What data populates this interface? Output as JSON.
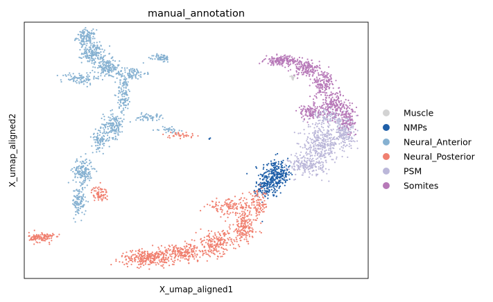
{
  "chart_data": {
    "type": "scatter",
    "title": "manual_annotation",
    "xlabel": "X_umap_aligned1",
    "ylabel": "X_umap_aligned2",
    "grid": false,
    "ticks": false,
    "legend_position": "right",
    "xlim": [
      0,
      100
    ],
    "ylim": [
      0,
      100
    ],
    "series": [
      {
        "name": "Muscle",
        "color": "#d3d3d3",
        "clusters": [
          {
            "x": 78,
            "y": 78.5,
            "sx": 0.5,
            "sy": 0.6,
            "n": 18
          }
        ]
      },
      {
        "name": "NMPs",
        "color": "#1f5fa8",
        "clusters": [
          {
            "x": 72,
            "y": 39,
            "sx": 1.8,
            "sy": 4.0,
            "n": 220
          },
          {
            "x": 75,
            "y": 41,
            "sx": 1.2,
            "sy": 2.5,
            "n": 90
          },
          {
            "x": 69,
            "y": 35,
            "sx": 1.0,
            "sy": 1.5,
            "n": 50
          },
          {
            "x": 54,
            "y": 54.5,
            "sx": 0.3,
            "sy": 0.3,
            "n": 4
          }
        ]
      },
      {
        "name": "Neural_Anterior",
        "color": "#86b1d1",
        "clusters": [
          {
            "x": 18,
            "y": 94,
            "sx": 1.4,
            "sy": 1.5,
            "n": 120
          },
          {
            "x": 20,
            "y": 88,
            "sx": 1.6,
            "sy": 2.0,
            "n": 160
          },
          {
            "x": 24,
            "y": 82,
            "sx": 1.8,
            "sy": 1.8,
            "n": 140
          },
          {
            "x": 16,
            "y": 78,
            "sx": 2.5,
            "sy": 1.2,
            "n": 80
          },
          {
            "x": 31,
            "y": 80,
            "sx": 2.2,
            "sy": 1.2,
            "n": 90
          },
          {
            "x": 40,
            "y": 86,
            "sx": 1.2,
            "sy": 0.8,
            "n": 60
          },
          {
            "x": 29,
            "y": 72,
            "sx": 1.0,
            "sy": 3.5,
            "n": 110
          },
          {
            "x": 26,
            "y": 60,
            "sx": 1.5,
            "sy": 2.5,
            "n": 150
          },
          {
            "x": 22,
            "y": 54,
            "sx": 1.2,
            "sy": 2.0,
            "n": 90
          },
          {
            "x": 17,
            "y": 42,
            "sx": 1.4,
            "sy": 2.5,
            "n": 160
          },
          {
            "x": 16,
            "y": 30,
            "sx": 1.0,
            "sy": 3.0,
            "n": 110
          },
          {
            "x": 36,
            "y": 63,
            "sx": 2.0,
            "sy": 0.7,
            "n": 50
          },
          {
            "x": 42,
            "y": 58,
            "sx": 1.5,
            "sy": 0.5,
            "n": 30
          }
        ]
      },
      {
        "name": "Neural_Posterior",
        "color": "#f08070",
        "clusters": [
          {
            "x": 22,
            "y": 33,
            "sx": 1.2,
            "sy": 1.5,
            "n": 70
          },
          {
            "x": 45,
            "y": 56,
            "sx": 2.5,
            "sy": 0.6,
            "n": 35
          },
          {
            "x": 5,
            "y": 16,
            "sx": 1.8,
            "sy": 1.0,
            "n": 120
          },
          {
            "x": 36,
            "y": 8,
            "sx": 4.0,
            "sy": 1.5,
            "n": 260
          },
          {
            "x": 46,
            "y": 10,
            "sx": 4.0,
            "sy": 1.8,
            "n": 220
          },
          {
            "x": 56,
            "y": 14,
            "sx": 3.0,
            "sy": 2.2,
            "n": 190
          },
          {
            "x": 64,
            "y": 20,
            "sx": 2.0,
            "sy": 3.0,
            "n": 160
          },
          {
            "x": 60,
            "y": 28,
            "sx": 3.5,
            "sy": 1.5,
            "n": 130
          },
          {
            "x": 68,
            "y": 29,
            "sx": 1.5,
            "sy": 2.5,
            "n": 90
          }
        ]
      },
      {
        "name": "PSM",
        "color": "#bbb7d9",
        "clusters": [
          {
            "x": 86,
            "y": 52,
            "sx": 2.5,
            "sy": 4.0,
            "n": 320
          },
          {
            "x": 93,
            "y": 57,
            "sx": 1.5,
            "sy": 3.0,
            "n": 180
          },
          {
            "x": 82,
            "y": 44,
            "sx": 2.5,
            "sy": 2.0,
            "n": 160
          },
          {
            "x": 89,
            "y": 63,
            "sx": 2.5,
            "sy": 1.5,
            "n": 110
          }
        ]
      },
      {
        "name": "Somites",
        "color": "#b779b8",
        "clusters": [
          {
            "x": 75,
            "y": 85,
            "sx": 2.5,
            "sy": 0.9,
            "n": 160
          },
          {
            "x": 82,
            "y": 82,
            "sx": 2.0,
            "sy": 1.5,
            "n": 150
          },
          {
            "x": 87,
            "y": 76,
            "sx": 1.5,
            "sy": 2.5,
            "n": 140
          },
          {
            "x": 90,
            "y": 68,
            "sx": 2.0,
            "sy": 2.5,
            "n": 170
          },
          {
            "x": 94,
            "y": 63,
            "sx": 1.2,
            "sy": 2.5,
            "n": 110
          },
          {
            "x": 83,
            "y": 65,
            "sx": 1.5,
            "sy": 1.5,
            "n": 100
          }
        ]
      }
    ]
  }
}
